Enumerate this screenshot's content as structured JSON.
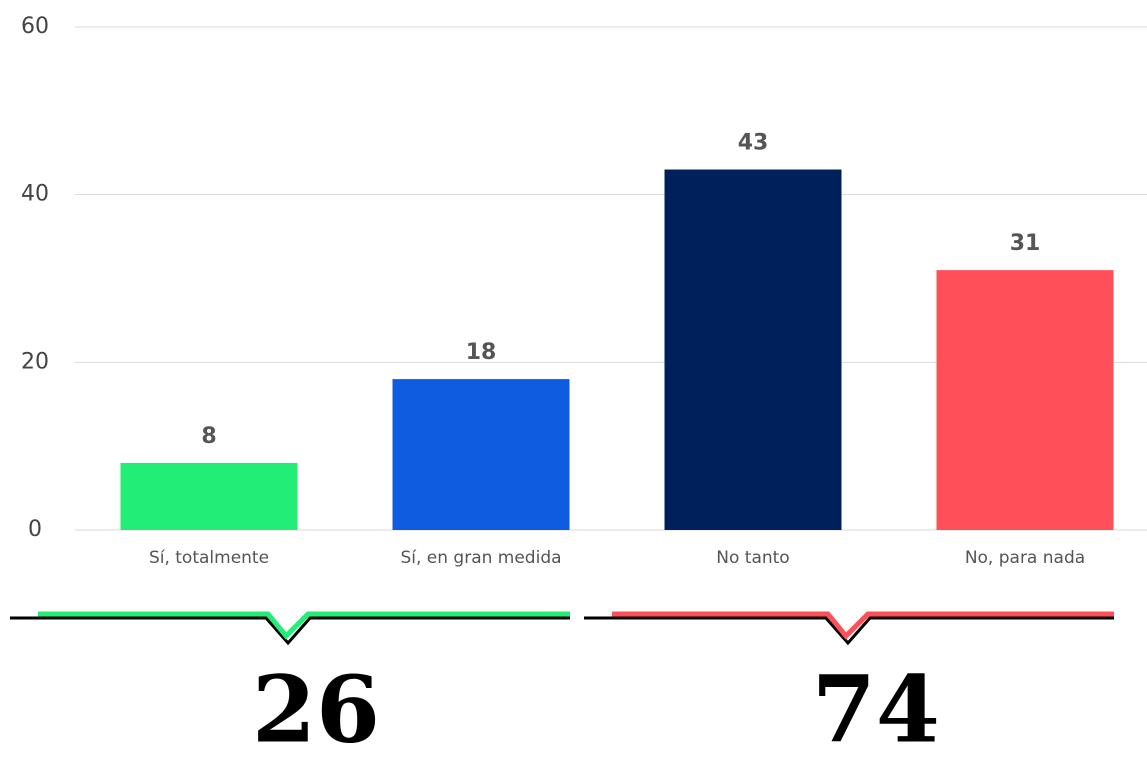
{
  "chart_data": {
    "type": "bar",
    "categories": [
      "Sí, totalmente",
      "Sí, en gran medida",
      "No tanto",
      "No, para nada"
    ],
    "values": [
      8,
      18,
      43,
      31
    ],
    "colors": [
      "#22ee77",
      "#0e5ce0",
      "#00205b",
      "#ff505a"
    ],
    "ylim": [
      0,
      60
    ],
    "yticks": [
      0,
      20,
      40,
      60
    ],
    "grid": true,
    "group_totals": [
      26,
      74
    ],
    "group_colors": [
      "#22ee77",
      "#ff505a"
    ]
  }
}
